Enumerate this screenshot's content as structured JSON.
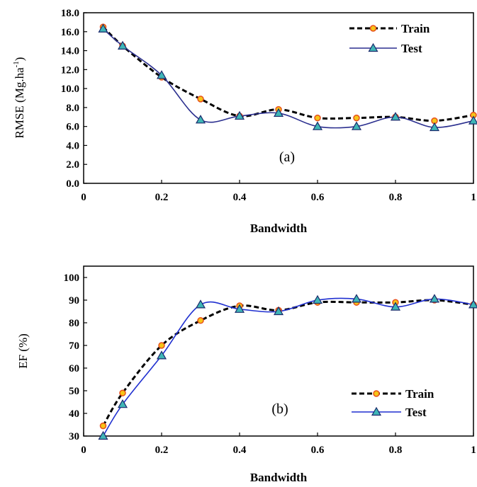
{
  "chart_data": [
    {
      "type": "line",
      "panel_label": "(a)",
      "xlabel": "Bandwidth",
      "ylabel": "RMSE (Mg.ha-1)",
      "ylabel_main": "RMSE (Mg.ha",
      "ylabel_sup": "-1",
      "ylabel_close": ")",
      "xlim": [
        0,
        1
      ],
      "ylim": [
        0,
        18
      ],
      "xticks": [
        0,
        0.2,
        0.4,
        0.6,
        0.8,
        1
      ],
      "xtick_labels": [
        "0",
        "0.2",
        "0.4",
        "0.6",
        "0.8",
        "1"
      ],
      "yticks": [
        0,
        2,
        4,
        6,
        8,
        10,
        12,
        14,
        16,
        18
      ],
      "ytick_labels": [
        "0.0",
        "2.0",
        "4.0",
        "6.0",
        "8.0",
        "10.0",
        "12.0",
        "14.0",
        "16.0",
        "18.0"
      ],
      "grid": false,
      "legend_position": "top-right",
      "x": [
        0.05,
        0.1,
        0.2,
        0.3,
        0.4,
        0.5,
        0.6,
        0.7,
        0.8,
        0.9,
        1.0
      ],
      "series": [
        {
          "name": "Train",
          "style": "dashed",
          "marker": "circle",
          "line_color": "#000000",
          "marker_fill": "#f5c518",
          "marker_edge": "#e8501c",
          "values": [
            16.5,
            14.5,
            11.2,
            8.9,
            7.1,
            7.8,
            6.9,
            6.9,
            7.0,
            6.6,
            7.2
          ]
        },
        {
          "name": "Test",
          "style": "solid",
          "marker": "triangle",
          "line_color": "#2b2f8f",
          "marker_fill": "#3fb6b6",
          "marker_edge": "#1a2a6c",
          "values": [
            16.3,
            14.5,
            11.4,
            6.7,
            7.1,
            7.4,
            6.0,
            6.0,
            7.0,
            5.9,
            6.6
          ]
        }
      ]
    },
    {
      "type": "line",
      "panel_label": "(b)",
      "xlabel": "Bandwidth",
      "ylabel": "EF (%)",
      "xlim": [
        0,
        1
      ],
      "ylim": [
        30,
        105
      ],
      "xticks": [
        0,
        0.2,
        0.4,
        0.6,
        0.8,
        1
      ],
      "xtick_labels": [
        "0",
        "0.2",
        "0.4",
        "0.6",
        "0.8",
        "1"
      ],
      "yticks": [
        30,
        40,
        50,
        60,
        70,
        80,
        90,
        100
      ],
      "ytick_labels": [
        "30",
        "40",
        "50",
        "60",
        "70",
        "80",
        "90",
        "100"
      ],
      "grid": false,
      "legend_position": "bottom-right",
      "x": [
        0.05,
        0.1,
        0.2,
        0.3,
        0.4,
        0.5,
        0.6,
        0.7,
        0.8,
        0.9,
        1.0
      ],
      "series": [
        {
          "name": "Train",
          "style": "dashed",
          "marker": "circle",
          "line_color": "#000000",
          "marker_fill": "#f5c518",
          "marker_edge": "#e8501c",
          "values": [
            34.5,
            49,
            70,
            81,
            87.5,
            85.5,
            89,
            89,
            89,
            90,
            88
          ]
        },
        {
          "name": "Test",
          "style": "solid",
          "marker": "triangle",
          "line_color": "#1f2fd0",
          "marker_fill": "#3fb6b6",
          "marker_edge": "#1a2a6c",
          "values": [
            30,
            44,
            65.5,
            88,
            86,
            85,
            90,
            90.5,
            87,
            90.5,
            88
          ]
        }
      ]
    }
  ]
}
